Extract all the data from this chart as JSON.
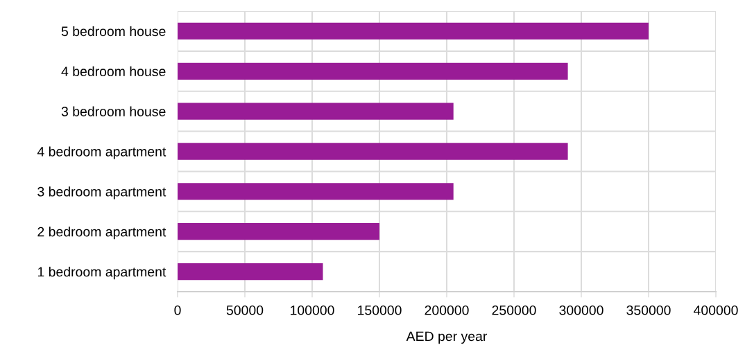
{
  "chart_data": {
    "type": "bar",
    "orientation": "horizontal",
    "categories": [
      "5 bedroom house",
      "4 bedroom house",
      "3 bedroom house",
      "4 bedroom apartment",
      "3 bedroom apartment",
      "2 bedroom apartment",
      "1 bedroom apartment"
    ],
    "values": [
      350000,
      290000,
      205000,
      290000,
      205000,
      150000,
      108000
    ],
    "color": "#991c96",
    "xlabel": "AED per year",
    "xlim": [
      0,
      400000
    ],
    "xticks": [
      0,
      50000,
      100000,
      150000,
      200000,
      250000,
      300000,
      350000,
      400000
    ],
    "grid": true
  }
}
